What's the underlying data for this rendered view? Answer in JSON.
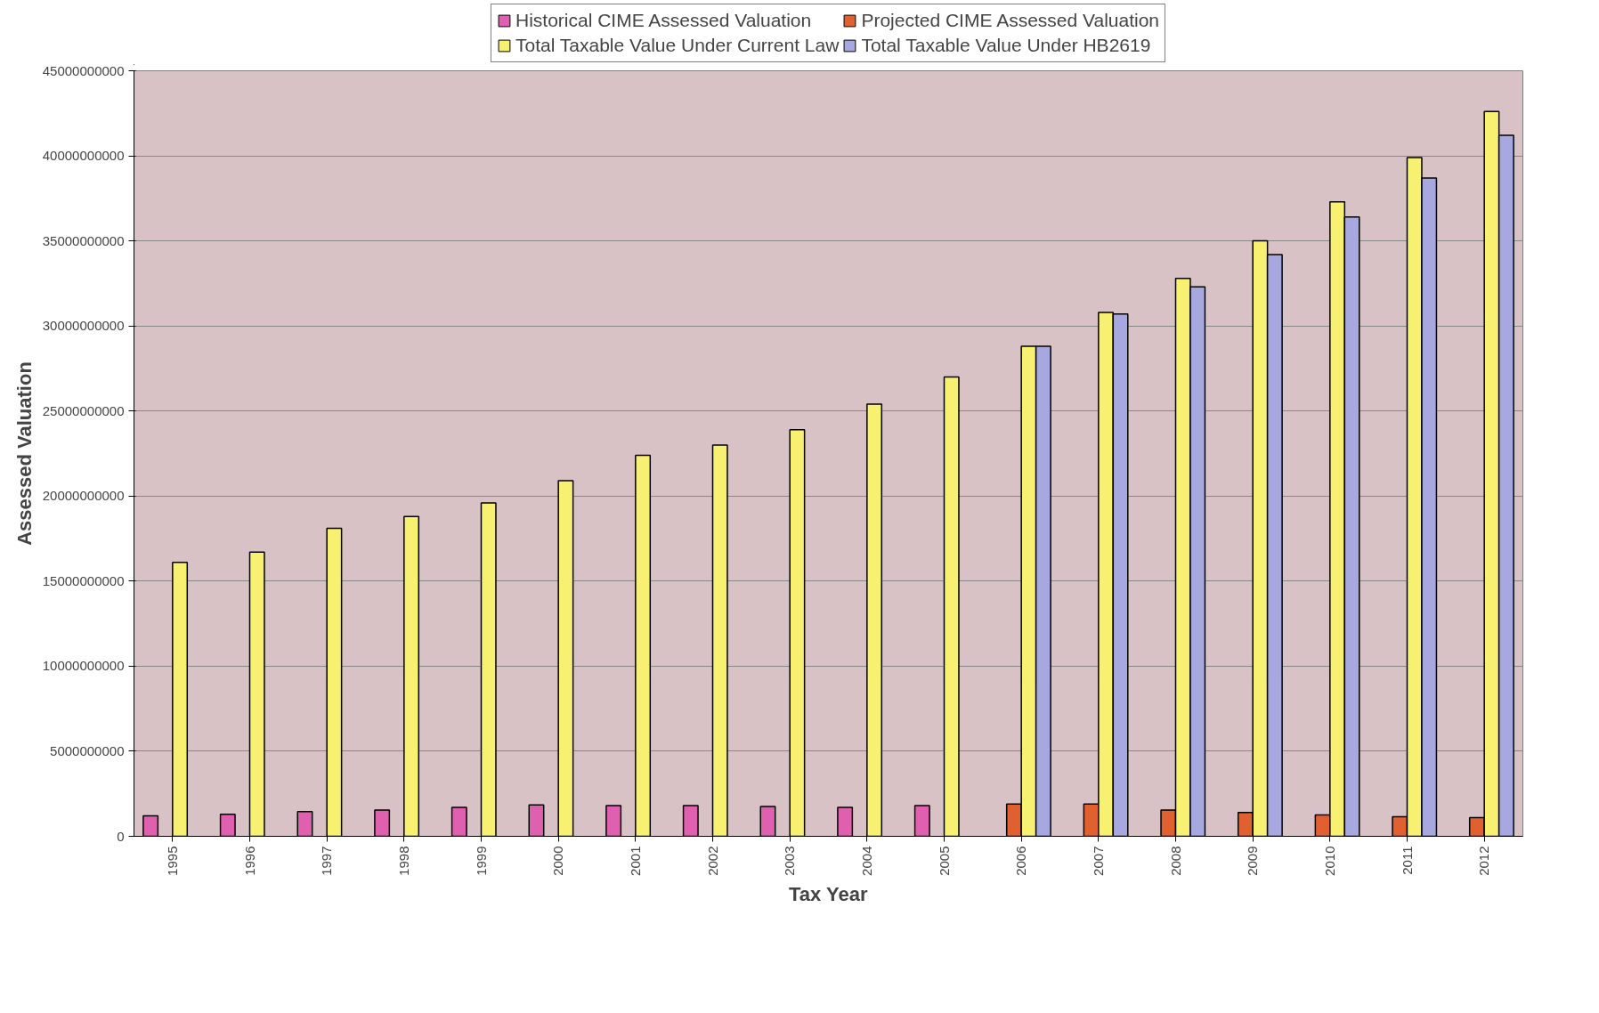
{
  "chart_data": {
    "type": "bar",
    "xlabel": "Tax Year",
    "ylabel": "Assessed Valuation",
    "categories": [
      "1995",
      "1996",
      "1997",
      "1998",
      "1999",
      "2000",
      "2001",
      "2002",
      "2003",
      "2004",
      "2005",
      "2006",
      "2007",
      "2008",
      "2009",
      "2010",
      "2011",
      "2012"
    ],
    "series": [
      {
        "name": "Historical CIME Assessed Valuation",
        "color": "#e060b0",
        "values": [
          1200000000,
          1300000000,
          1450000000,
          1550000000,
          1700000000,
          1850000000,
          1800000000,
          1800000000,
          1750000000,
          1700000000,
          1800000000,
          null,
          null,
          null,
          null,
          null,
          null,
          null
        ]
      },
      {
        "name": "Projected CIME Assessed Valuation",
        "color": "#e06030",
        "values": [
          null,
          null,
          null,
          null,
          null,
          null,
          null,
          null,
          null,
          null,
          null,
          1900000000,
          1900000000,
          1550000000,
          1400000000,
          1250000000,
          1150000000,
          1100000000
        ]
      },
      {
        "name": "Total Taxable Value Under Current Law",
        "color": "#f8f070",
        "values": [
          16100000000,
          16700000000,
          18100000000,
          18800000000,
          19600000000,
          20900000000,
          22400000000,
          23000000000,
          23900000000,
          25400000000,
          27000000000,
          28800000000,
          30800000000,
          32800000000,
          35000000000,
          37300000000,
          39900000000,
          42600000000
        ]
      },
      {
        "name": "Total Taxable Value Under HB2619",
        "color": "#a8a8e0",
        "values": [
          null,
          null,
          null,
          null,
          null,
          null,
          null,
          null,
          null,
          null,
          null,
          28800000000,
          30700000000,
          32300000000,
          34200000000,
          36400000000,
          38700000000,
          41200000000
        ]
      }
    ],
    "ylim": [
      0,
      45000000000
    ],
    "yticks": [
      0,
      5000000000,
      10000000000,
      15000000000,
      20000000000,
      25000000000,
      30000000000,
      35000000000,
      40000000000,
      45000000000
    ],
    "grid": "y",
    "legend": "top"
  }
}
